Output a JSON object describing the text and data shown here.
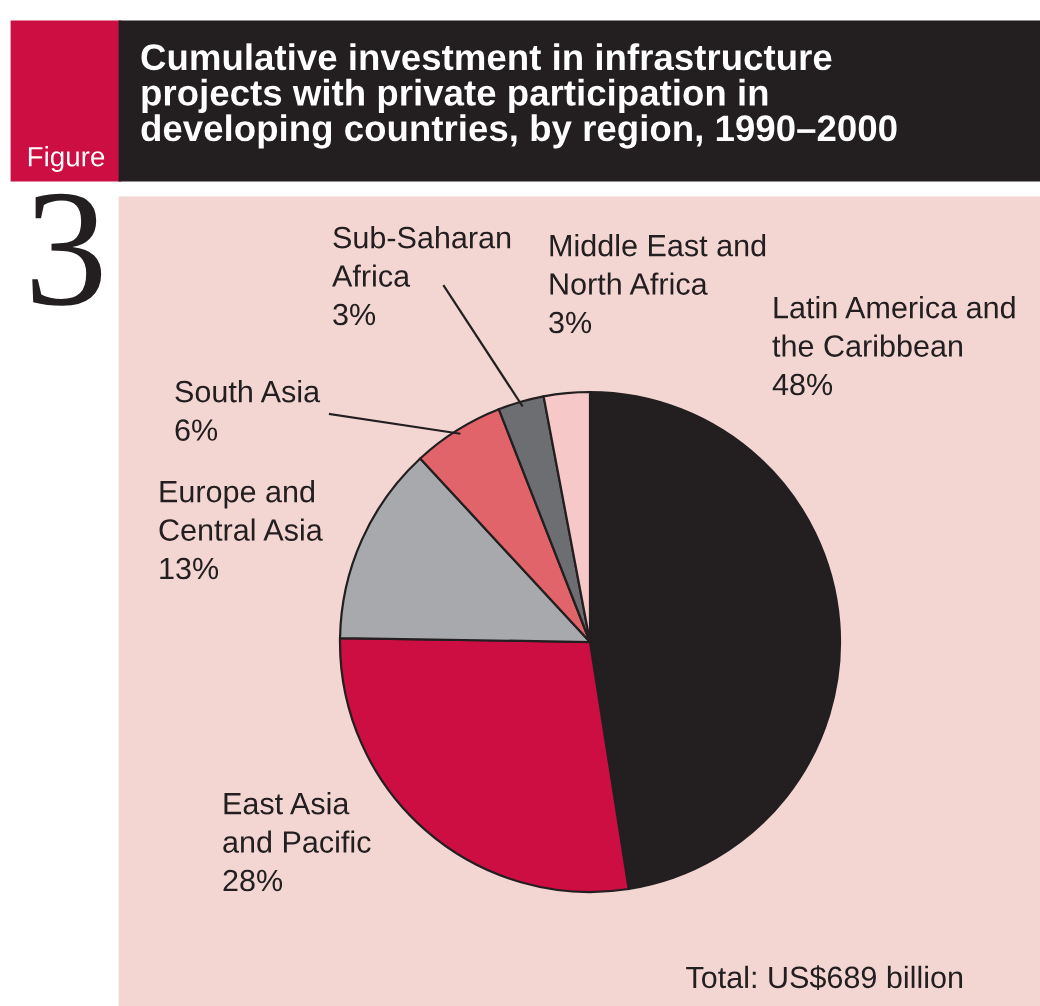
{
  "chart_data": {
    "type": "pie",
    "title": "Cumulative investment in infrastructure\nprojects with private participation in\ndeveloping countries, by region, 1990–2000",
    "categories": [
      "Latin America and\nthe Caribbean",
      "East Asia\nand Pacific",
      "Europe and\nCentral Asia",
      "South Asia",
      "Sub-Saharan\nAfrica",
      "Middle East and\nNorth Africa"
    ],
    "values": [
      48,
      28,
      13,
      6,
      3,
      3
    ],
    "value_labels": [
      "48%",
      "28%",
      "13%",
      "6%",
      "3%",
      "3%"
    ],
    "colors": [
      "#231f20",
      "#cc0e42",
      "#a7a9ac",
      "#e0646a",
      "#6d6e71",
      "#f6c8c8"
    ],
    "annotations": [
      "Figure",
      "3",
      "Total: US$689 billion"
    ]
  }
}
